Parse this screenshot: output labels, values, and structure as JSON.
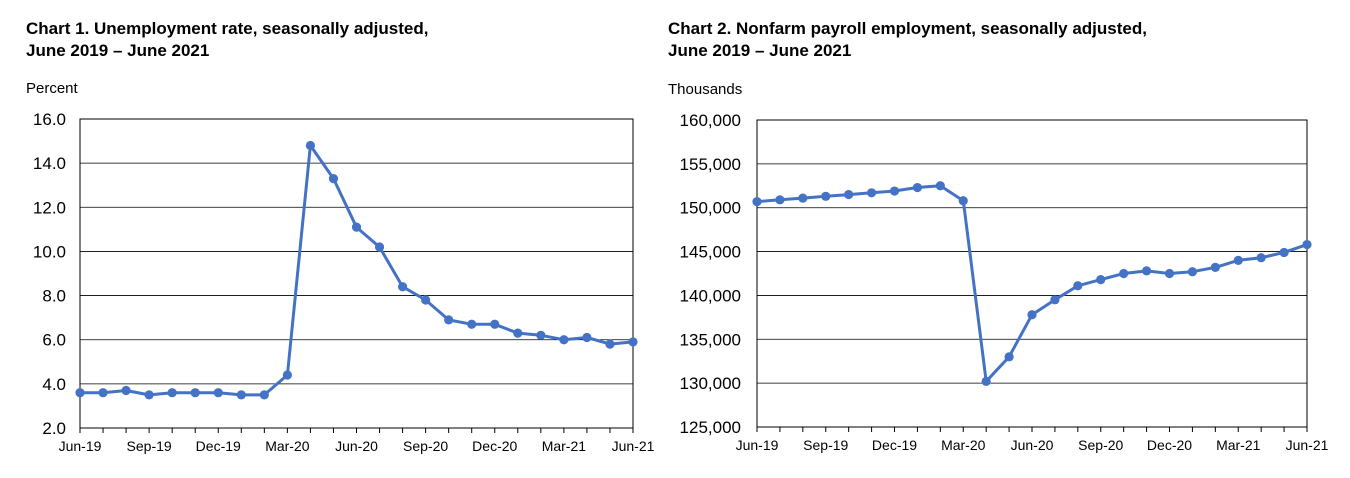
{
  "chart_data": [
    {
      "type": "line",
      "title_line1": "Chart 1. Unemployment rate, seasonally adjusted,",
      "title_line2": "June 2019 – June 2021",
      "ylabel": "Percent",
      "xlabel": "",
      "x": [
        "Jun-19",
        "Jul-19",
        "Aug-19",
        "Sep-19",
        "Oct-19",
        "Nov-19",
        "Dec-19",
        "Jan-20",
        "Feb-20",
        "Mar-20",
        "Apr-20",
        "May-20",
        "Jun-20",
        "Jul-20",
        "Aug-20",
        "Sep-20",
        "Oct-20",
        "Nov-20",
        "Dec-20",
        "Jan-21",
        "Feb-21",
        "Mar-21",
        "Apr-21",
        "May-21",
        "Jun-21"
      ],
      "x_tick_labels": [
        "Jun-19",
        "Sep-19",
        "Dec-19",
        "Mar-20",
        "Jun-20",
        "Sep-20",
        "Dec-20",
        "Mar-21",
        "Jun-21"
      ],
      "values": [
        3.6,
        3.6,
        3.7,
        3.5,
        3.6,
        3.6,
        3.6,
        3.5,
        3.5,
        4.4,
        14.8,
        13.3,
        11.1,
        10.2,
        8.4,
        7.8,
        6.9,
        6.7,
        6.7,
        6.3,
        6.2,
        6.0,
        6.1,
        5.8,
        5.9
      ],
      "ylim": [
        2.0,
        16.0
      ],
      "y_ticks": [
        "2.0",
        "4.0",
        "6.0",
        "8.0",
        "10.0",
        "12.0",
        "14.0",
        "16.0"
      ],
      "grid": true,
      "line_color": "#4472C4"
    },
    {
      "type": "line",
      "title_line1": "Chart 2. Nonfarm payroll employment, seasonally adjusted,",
      "title_line2": "June 2019 – June 2021",
      "ylabel": "Thousands",
      "xlabel": "",
      "x": [
        "Jun-19",
        "Jul-19",
        "Aug-19",
        "Sep-19",
        "Oct-19",
        "Nov-19",
        "Dec-19",
        "Jan-20",
        "Feb-20",
        "Mar-20",
        "Apr-20",
        "May-20",
        "Jun-20",
        "Jul-20",
        "Aug-20",
        "Sep-20",
        "Oct-20",
        "Nov-20",
        "Dec-20",
        "Jan-21",
        "Feb-21",
        "Mar-21",
        "Apr-21",
        "May-21",
        "Jun-21"
      ],
      "x_tick_labels": [
        "Jun-19",
        "Sep-19",
        "Dec-19",
        "Mar-20",
        "Jun-20",
        "Sep-20",
        "Dec-20",
        "Mar-21",
        "Jun-21"
      ],
      "values": [
        150700,
        150900,
        151100,
        151300,
        151500,
        151700,
        151900,
        152300,
        152500,
        150800,
        130200,
        133000,
        137800,
        139500,
        141100,
        141800,
        142500,
        142800,
        142500,
        142700,
        143200,
        144000,
        144300,
        144900,
        145800
      ],
      "ylim": [
        125000,
        160000
      ],
      "y_ticks": [
        "125,000",
        "130,000",
        "135,000",
        "140,000",
        "145,000",
        "150,000",
        "155,000",
        "160,000"
      ],
      "grid": true,
      "line_color": "#4472C4"
    }
  ]
}
